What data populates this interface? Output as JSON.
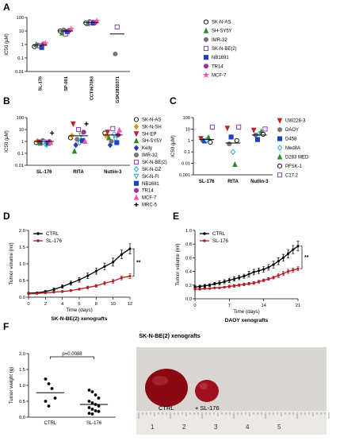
{
  "panel_letters": [
    "A",
    "B",
    "C",
    "D",
    "E",
    "F"
  ],
  "chart_data": [
    {
      "panel": "A",
      "type": "scatter",
      "ylabel": "IC50 (μM)",
      "yscale": "log",
      "ylim": [
        0.01,
        100
      ],
      "yticks": [
        "0.01",
        "0.1",
        "1",
        "10",
        "100"
      ],
      "categories": [
        "SL-176",
        "SP-001",
        "CCT067093",
        "GSK2830371"
      ],
      "series": [
        {
          "name": "SK-N-AS",
          "marker": "open-circle",
          "color": "#000000",
          "values": [
            0.7,
            10,
            40,
            null
          ]
        },
        {
          "name": "SH-SY5Y",
          "marker": "triangle",
          "color": "#2e8b2e",
          "values": [
            1.0,
            7,
            35,
            null
          ]
        },
        {
          "name": "IMR-32",
          "marker": "circle",
          "color": "#777777",
          "values": [
            0.9,
            12,
            50,
            0.2
          ]
        },
        {
          "name": "SK-N-BE(2)",
          "marker": "open-square",
          "color": "#7b2fbe",
          "values": [
            0.8,
            6,
            45,
            20
          ]
        },
        {
          "name": "NB1691",
          "marker": "square",
          "color": "#1f3fbf",
          "values": [
            0.6,
            9,
            38,
            null
          ]
        },
        {
          "name": "TR14",
          "marker": "circle",
          "color": "#9b30a0",
          "values": [
            1.1,
            11,
            42,
            null
          ]
        },
        {
          "name": "MCF-7",
          "marker": "star",
          "color": "#ff55aa",
          "values": [
            1.2,
            14,
            55,
            null
          ]
        }
      ],
      "means": [
        0.9,
        10,
        43,
        6
      ]
    },
    {
      "panel": "B",
      "type": "scatter",
      "ylabel": "IC50 (μM)",
      "yscale": "log",
      "ylim": [
        0.01,
        100
      ],
      "yticks": [
        "0.01",
        "0.1",
        "1",
        "10",
        "100"
      ],
      "categories": [
        "SL-176",
        "RITA",
        "Nutlin-3"
      ],
      "series": [
        {
          "name": "SK-N-AS",
          "marker": "open-circle",
          "color": "#000000",
          "values": [
            0.8,
            2.0,
            5.0
          ]
        },
        {
          "name": "SK-N-SH",
          "marker": "diamond",
          "color": "#f0900a",
          "values": [
            1.1,
            3.0,
            3.0
          ]
        },
        {
          "name": "SH-EP",
          "marker": "triangle-down",
          "color": "#c0202a",
          "values": [
            0.9,
            30,
            6.0
          ]
        },
        {
          "name": "SH-SY5Y",
          "marker": "triangle",
          "color": "#2e8b2e",
          "values": [
            0.7,
            0.15,
            2.0
          ]
        },
        {
          "name": "Kelly",
          "marker": "diamond",
          "color": "#1f3fbf",
          "values": [
            1.0,
            0.5,
            0.5
          ]
        },
        {
          "name": "IMR-32",
          "marker": "circle",
          "color": "#777777",
          "values": [
            1.2,
            1.5,
            1.0
          ]
        },
        {
          "name": "SK-N-BE(2)",
          "marker": "open-square",
          "color": "#7b2fbe",
          "values": [
            0.9,
            10,
            12
          ]
        },
        {
          "name": "SK-N-DZ",
          "marker": "open-diamond",
          "color": "#1aa0e0",
          "values": [
            0.6,
            0.8,
            4.0
          ]
        },
        {
          "name": "SK-N-FI",
          "marker": "open-triangle-down",
          "color": "#18a8a0",
          "values": [
            0.5,
            3.5,
            1.5
          ]
        },
        {
          "name": "NB1691",
          "marker": "square",
          "color": "#1f3fbf",
          "values": [
            0.7,
            1.2,
            0.8
          ]
        },
        {
          "name": "TR14",
          "marker": "circle",
          "color": "#9b30a0",
          "values": [
            1.0,
            6.0,
            3.5
          ]
        },
        {
          "name": "MCF-7",
          "marker": "triangle",
          "color": "#ff55aa",
          "values": [
            0.8,
            1.0,
            9.0
          ]
        },
        {
          "name": "MRC-5",
          "marker": "plus",
          "color": "#000000",
          "values": [
            5.0,
            30,
            null
          ]
        }
      ],
      "means": [
        1.0,
        3.0,
        3.5
      ]
    },
    {
      "panel": "C",
      "type": "scatter",
      "ylabel": "IC50 (μM)",
      "yscale": "log",
      "ylim": [
        0.001,
        100
      ],
      "yticks": [
        "0.001",
        "0.01",
        "0.1",
        "1",
        "10",
        "100"
      ],
      "categories": [
        "SL-176",
        "RITA",
        "Nutlin-3"
      ],
      "series": [
        {
          "name": "UW228-3",
          "marker": "triangle-down",
          "color": "#c0202a",
          "values": [
            1.5,
            12,
            8.0
          ]
        },
        {
          "name": "DAOY",
          "marker": "circle",
          "color": "#777777",
          "values": [
            1.0,
            0.5,
            3.0
          ]
        },
        {
          "name": "D458",
          "marker": "square",
          "color": "#1f3fbf",
          "values": [
            0.9,
            2.0,
            1.2
          ]
        },
        {
          "name": "Med8A",
          "marker": "open-diamond",
          "color": "#1aa0e0",
          "values": [
            1.1,
            0.1,
            4.0
          ]
        },
        {
          "name": "D283 MED",
          "marker": "triangle",
          "color": "#2e8b2e",
          "values": [
            1.8,
            0.008,
            6.0
          ]
        },
        {
          "name": "PFSK-1",
          "marker": "open-circle",
          "color": "#000000",
          "values": [
            0.7,
            1.0,
            3.5
          ]
        },
        {
          "name": "C17.2",
          "marker": "open-square",
          "color": "#7b2fbe",
          "values": [
            15,
            15,
            10
          ]
        }
      ],
      "means": [
        1.2,
        0.6,
        3.0
      ]
    },
    {
      "panel": "D",
      "type": "line",
      "xlabel": "Time (days)",
      "ylabel": "Tumor volume (ml)",
      "caption": "SK-N-BE(2) xenografts",
      "xlim": [
        0,
        12
      ],
      "ylim": [
        0,
        2.0
      ],
      "xticks": [
        "0",
        "2",
        "4",
        "6",
        "8",
        "10",
        "12"
      ],
      "yticks": [
        "0.0",
        "0.5",
        "1.0",
        "1.5",
        "2.0"
      ],
      "significance": "**",
      "x": [
        0,
        1,
        2,
        3,
        4,
        5,
        6,
        7,
        8,
        9,
        10,
        11,
        12
      ],
      "series": [
        {
          "name": "CTRL",
          "color": "#000000",
          "values": [
            0.12,
            0.13,
            0.17,
            0.23,
            0.32,
            0.42,
            0.52,
            0.64,
            0.78,
            0.92,
            1.05,
            1.28,
            1.45
          ],
          "errors": [
            0.02,
            0.02,
            0.03,
            0.04,
            0.05,
            0.06,
            0.07,
            0.08,
            0.09,
            0.1,
            0.12,
            0.13,
            0.15
          ]
        },
        {
          "name": "SL-176",
          "color": "#b01c24",
          "values": [
            0.1,
            0.11,
            0.13,
            0.15,
            0.17,
            0.2,
            0.24,
            0.29,
            0.34,
            0.42,
            0.48,
            0.58,
            0.63
          ],
          "errors": [
            0.01,
            0.01,
            0.02,
            0.02,
            0.03,
            0.03,
            0.03,
            0.04,
            0.04,
            0.05,
            0.06,
            0.06,
            0.07
          ]
        }
      ]
    },
    {
      "panel": "E",
      "type": "line",
      "xlabel": "Time (days)",
      "ylabel": "Tumor volume (ml)",
      "caption": "DAOY xenografts",
      "xlim": [
        0,
        21
      ],
      "ylim": [
        0,
        1.0
      ],
      "xticks": [
        "0",
        "7",
        "14",
        "21"
      ],
      "yticks": [
        "0.0",
        "0.2",
        "0.4",
        "0.6",
        "0.8",
        "1.0"
      ],
      "significance": "**",
      "x": [
        0,
        1,
        2,
        3,
        4,
        5,
        6,
        7,
        8,
        9,
        10,
        11,
        12,
        13,
        14,
        15,
        16,
        17,
        18,
        19,
        20,
        21
      ],
      "series": [
        {
          "name": "CTRL",
          "color": "#000000",
          "values": [
            0.17,
            0.18,
            0.19,
            0.2,
            0.22,
            0.23,
            0.25,
            0.27,
            0.29,
            0.31,
            0.33,
            0.36,
            0.39,
            0.41,
            0.43,
            0.46,
            0.5,
            0.55,
            0.6,
            0.66,
            0.72,
            0.77
          ],
          "errors": [
            0.02,
            0.02,
            0.02,
            0.02,
            0.02,
            0.03,
            0.03,
            0.03,
            0.03,
            0.03,
            0.03,
            0.04,
            0.04,
            0.04,
            0.04,
            0.04,
            0.05,
            0.05,
            0.05,
            0.06,
            0.06,
            0.07
          ]
        },
        {
          "name": "SL-176",
          "color": "#b01c24",
          "values": [
            0.14,
            0.14,
            0.15,
            0.15,
            0.16,
            0.16,
            0.17,
            0.18,
            0.19,
            0.2,
            0.21,
            0.22,
            0.23,
            0.25,
            0.27,
            0.29,
            0.31,
            0.34,
            0.37,
            0.4,
            0.42,
            0.44
          ],
          "errors": [
            0.01,
            0.01,
            0.01,
            0.01,
            0.01,
            0.01,
            0.01,
            0.02,
            0.02,
            0.02,
            0.02,
            0.02,
            0.02,
            0.02,
            0.02,
            0.02,
            0.02,
            0.03,
            0.03,
            0.03,
            0.03,
            0.03
          ]
        }
      ]
    },
    {
      "panel": "F",
      "type": "scatter",
      "title": "SK-N-BE(2) xenografts",
      "ylabel": "Tumor weight (g)",
      "ylim": [
        0,
        2.0
      ],
      "yticks": [
        "0.0",
        "0.5",
        "1.0",
        "1.5",
        "2.0"
      ],
      "categories": [
        "CTRL",
        "SL-176"
      ],
      "annotation": "p=0.0088",
      "series": [
        {
          "name": "CTRL",
          "values": [
            1.2,
            1.05,
            0.9,
            0.6,
            0.5,
            0.35
          ]
        },
        {
          "name": "SL-176",
          "values": [
            0.85,
            0.8,
            0.7,
            0.6,
            0.5,
            0.45,
            0.4,
            0.35,
            0.3,
            0.25,
            0.2,
            0.18,
            0.12,
            0.1
          ]
        }
      ],
      "means": [
        0.77,
        0.4
      ]
    }
  ],
  "photo": {
    "labels": [
      "CTRL",
      "+ SL-176"
    ],
    "ruler_numbers": [
      "1",
      "2",
      "3",
      "4",
      "5"
    ]
  }
}
